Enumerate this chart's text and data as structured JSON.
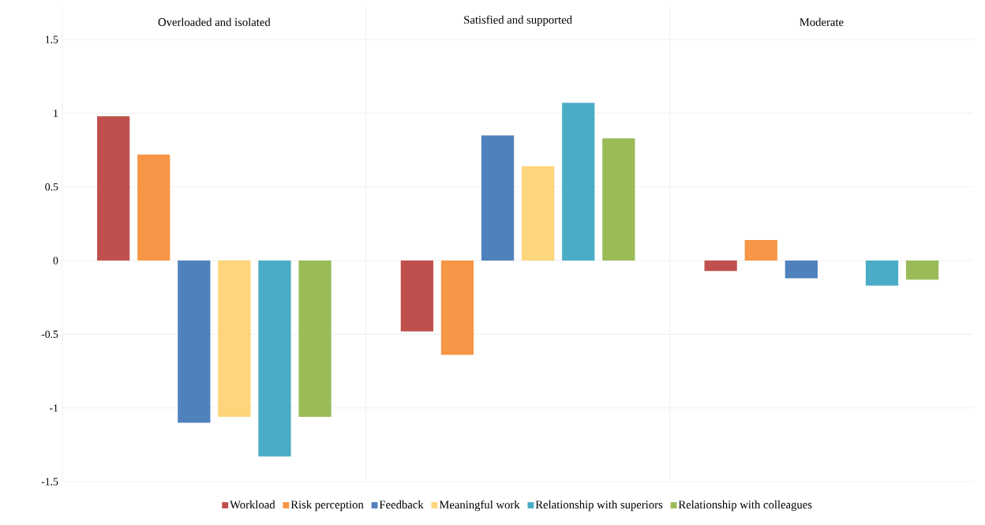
{
  "chart_data": {
    "type": "bar",
    "categories": [
      "Overloaded and isolated",
      "Satisfied and supported",
      "Moderate"
    ],
    "series": [
      {
        "name": "Workload",
        "color": "#c0504d",
        "values": [
          0.98,
          -0.48,
          -0.07
        ]
      },
      {
        "name": "Risk perception",
        "color": "#f79646",
        "values": [
          0.72,
          -0.64,
          0.14
        ]
      },
      {
        "name": "Feedback",
        "color": "#4f81bd",
        "values": [
          -1.1,
          0.85,
          -0.12
        ]
      },
      {
        "name": "Meaningful work",
        "color": "#fdd57a",
        "values": [
          -1.06,
          0.64,
          0
        ]
      },
      {
        "name": "Relationship with superiors",
        "color": "#4bacc6",
        "values": [
          -1.33,
          1.07,
          -0.17
        ]
      },
      {
        "name": "Relationship with colleagues",
        "color": "#9bbb59",
        "values": [
          -1.06,
          0.83,
          -0.13
        ]
      }
    ],
    "ylim": [
      -1.5,
      1.5
    ],
    "yticks": [
      -1.5,
      -1,
      -0.5,
      0,
      0.5,
      1,
      1.5
    ],
    "grid": "y",
    "legend": "bottom"
  }
}
